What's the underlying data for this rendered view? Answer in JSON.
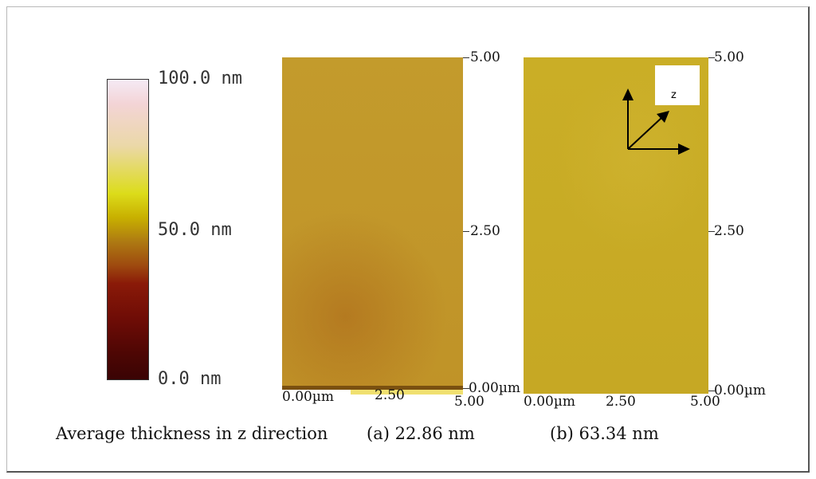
{
  "colorbar": {
    "max_label": "100.0 nm",
    "mid_label": "50.0 nm",
    "min_label": "0.0 nm"
  },
  "panel_a": {
    "y_ticks": [
      "5.00",
      "2.50",
      "0.00µm"
    ],
    "x_ticks": [
      "0.00µm",
      "2.50",
      "5.00"
    ]
  },
  "panel_b": {
    "y_ticks": [
      "5.00",
      "2.50",
      "0.00µm"
    ],
    "x_ticks": [
      "0.00µm",
      "2.50",
      "5.00"
    ],
    "axis_label": "z"
  },
  "caption": {
    "main": "Average thickness in z direction",
    "a": "(a) 22.86 nm",
    "b": "(b) 63.34 nm"
  },
  "colors": {
    "film_a": "#c49a2a",
    "film_b": "#c9ad25"
  }
}
